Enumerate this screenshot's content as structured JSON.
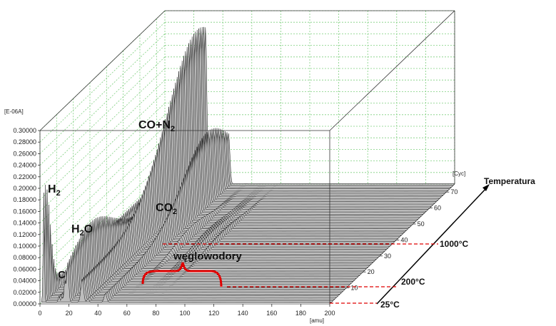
{
  "chart_data": {
    "type": "waterfall",
    "y_unit": "[E-06A]",
    "x_unit": "[amu]",
    "z_unit": "[Cyc]",
    "x_ticks": [
      "0",
      "20",
      "40",
      "60",
      "80",
      "100",
      "120",
      "140",
      "160",
      "180",
      "200"
    ],
    "y_ticks": [
      "0.00000",
      "0.02000",
      "0.04000",
      "0.06000",
      "0.08000",
      "0.10000",
      "0.12000",
      "0.14000",
      "0.16000",
      "0.18000",
      "0.20000",
      "0.22000",
      "0.24000",
      "0.26000",
      "0.28000",
      "0.30000"
    ],
    "z_ticks": [
      "10",
      "20",
      "30",
      "40",
      "50",
      "60",
      "70"
    ],
    "xlim": [
      0,
      200
    ],
    "ylim": [
      0,
      0.3
    ],
    "zlim": [
      0,
      75
    ],
    "cycles": 75,
    "peaks": [
      {
        "label": "H₂",
        "mass": 2,
        "max": 0.2
      },
      {
        "label": "C",
        "mass": 12,
        "max": 0.035
      },
      {
        "label": "H₂O",
        "mass": 18,
        "max": 0.1
      },
      {
        "label": "CO+N₂",
        "mass": 28,
        "max": 0.28
      },
      {
        "label": "CO₂",
        "mass": 44,
        "max": 0.13
      },
      {
        "label": "węglowodory",
        "mass_range": [
          15,
          75
        ],
        "max": 0.012
      }
    ],
    "annotations": {
      "h2": "H",
      "h2_sub": "2",
      "c": "C",
      "h2o_a": "H",
      "h2o_sub": "2",
      "h2o_b": "O",
      "co_n2": "CO+N",
      "co_n2_sub": "2",
      "co2": "CO",
      "co2_sub": "2",
      "hydrocarbons": "węglowodory",
      "temperature": "Temperatura",
      "t1000": "1000°C",
      "t200": "200°C",
      "t25": "25°C"
    },
    "colors": {
      "grid": "#7fcf7f",
      "spectrum_fill": "#bdbdbd",
      "spectrum_line": "#111111",
      "bracket": "#e00000",
      "dashed": "#e00000"
    }
  }
}
